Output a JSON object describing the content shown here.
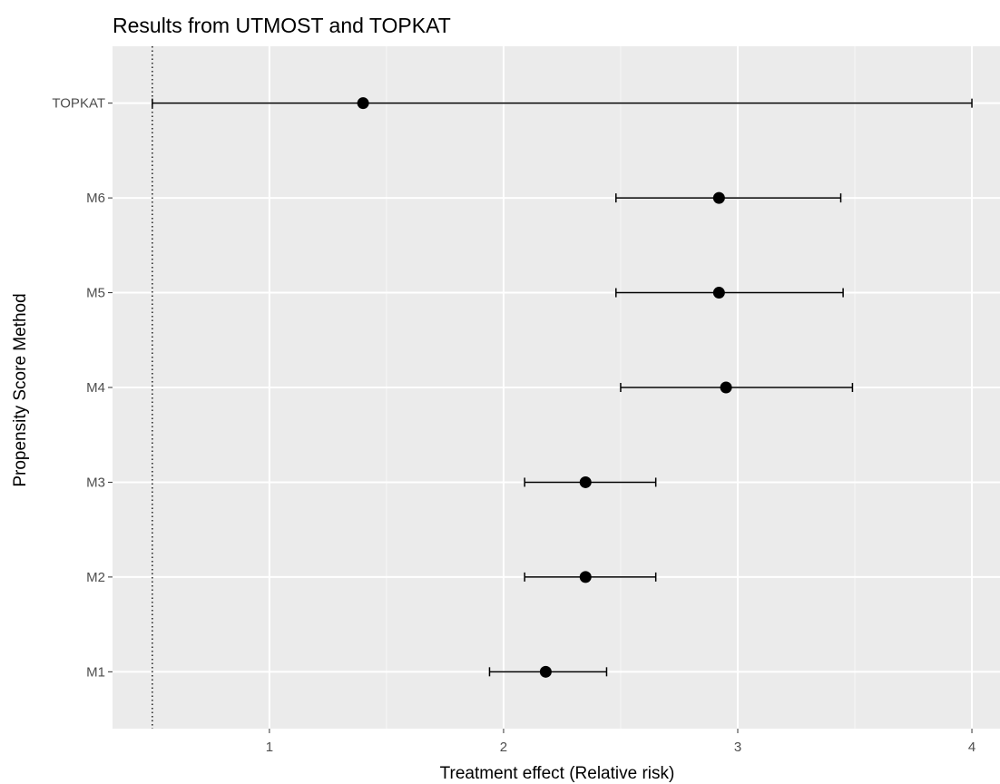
{
  "chart_data": {
    "type": "scatter",
    "subtype": "forest-plot",
    "title": "Results from UTMOST and TOPKAT",
    "xlabel": "Treatment effect (Relative risk)",
    "ylabel": "Propensity Score Method",
    "xlim": [
      0.33,
      4.12
    ],
    "x_ticks": [
      1,
      2,
      3,
      4
    ],
    "x_tick_labels": [
      "1",
      "2",
      "3",
      "4"
    ],
    "reference_line": {
      "x": 0.5,
      "style": "dotted"
    },
    "grid": true,
    "categories": [
      "TOPKAT",
      "M6",
      "M5",
      "M4",
      "M3",
      "M2",
      "M1"
    ],
    "points": [
      {
        "label": "TOPKAT",
        "estimate": 1.4,
        "lower": 0.5,
        "upper": 4.0
      },
      {
        "label": "M6",
        "estimate": 2.92,
        "lower": 2.48,
        "upper": 3.44
      },
      {
        "label": "M5",
        "estimate": 2.92,
        "lower": 2.48,
        "upper": 3.45
      },
      {
        "label": "M4",
        "estimate": 2.95,
        "lower": 2.5,
        "upper": 3.49
      },
      {
        "label": "M3",
        "estimate": 2.35,
        "lower": 2.09,
        "upper": 2.65
      },
      {
        "label": "M2",
        "estimate": 2.35,
        "lower": 2.09,
        "upper": 2.65
      },
      {
        "label": "M1",
        "estimate": 2.18,
        "lower": 1.94,
        "upper": 2.44
      }
    ],
    "colors": {
      "panel_background": "#ebebeb",
      "grid_major": "#ffffff",
      "point": "#000000",
      "errorbar": "#000000",
      "tick_text": "#4d4d4d"
    }
  }
}
